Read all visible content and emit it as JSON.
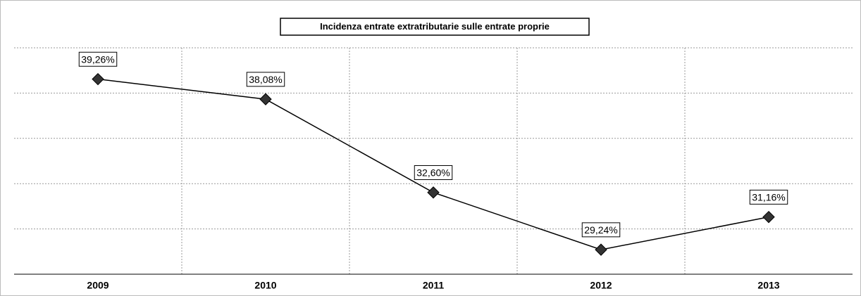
{
  "chart_data": {
    "type": "line",
    "title": "Incidenza entrate extratributarie sulle entrate proprie",
    "categories": [
      "2009",
      "2010",
      "2011",
      "2012",
      "2013"
    ],
    "values": [
      39.26,
      38.08,
      32.6,
      29.24,
      31.16
    ],
    "value_labels": [
      "39,26%",
      "38,08%",
      "32,60%",
      "29,24%",
      "31,16%"
    ],
    "color": "#000000",
    "marker_color": "#333333",
    "ylim": [
      27.8,
      41.1
    ],
    "grid": true
  }
}
